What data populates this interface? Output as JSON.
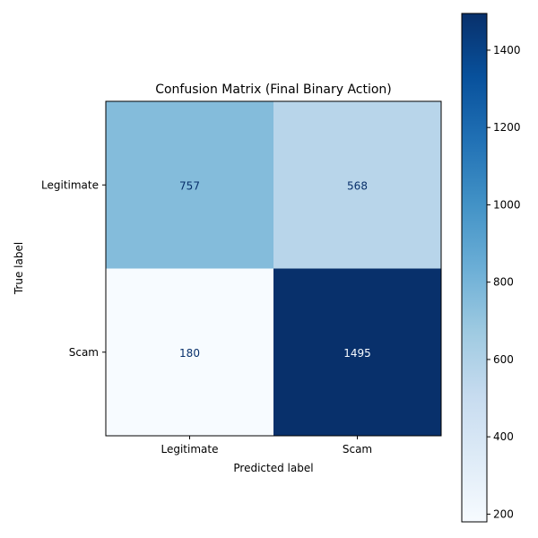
{
  "chart_data": {
    "type": "heatmap",
    "title": "Confusion Matrix (Final Binary Action)",
    "xlabel": "Predicted label",
    "ylabel": "True label",
    "x_categories": [
      "Legitimate",
      "Scam"
    ],
    "y_categories": [
      "Legitimate",
      "Scam"
    ],
    "values": [
      [
        757,
        568
      ],
      [
        180,
        1495
      ]
    ],
    "colormap": "Blues",
    "colorbar": {
      "min": 180,
      "max": 1495,
      "ticks": [
        200,
        400,
        600,
        800,
        1000,
        1200,
        1400
      ]
    }
  }
}
